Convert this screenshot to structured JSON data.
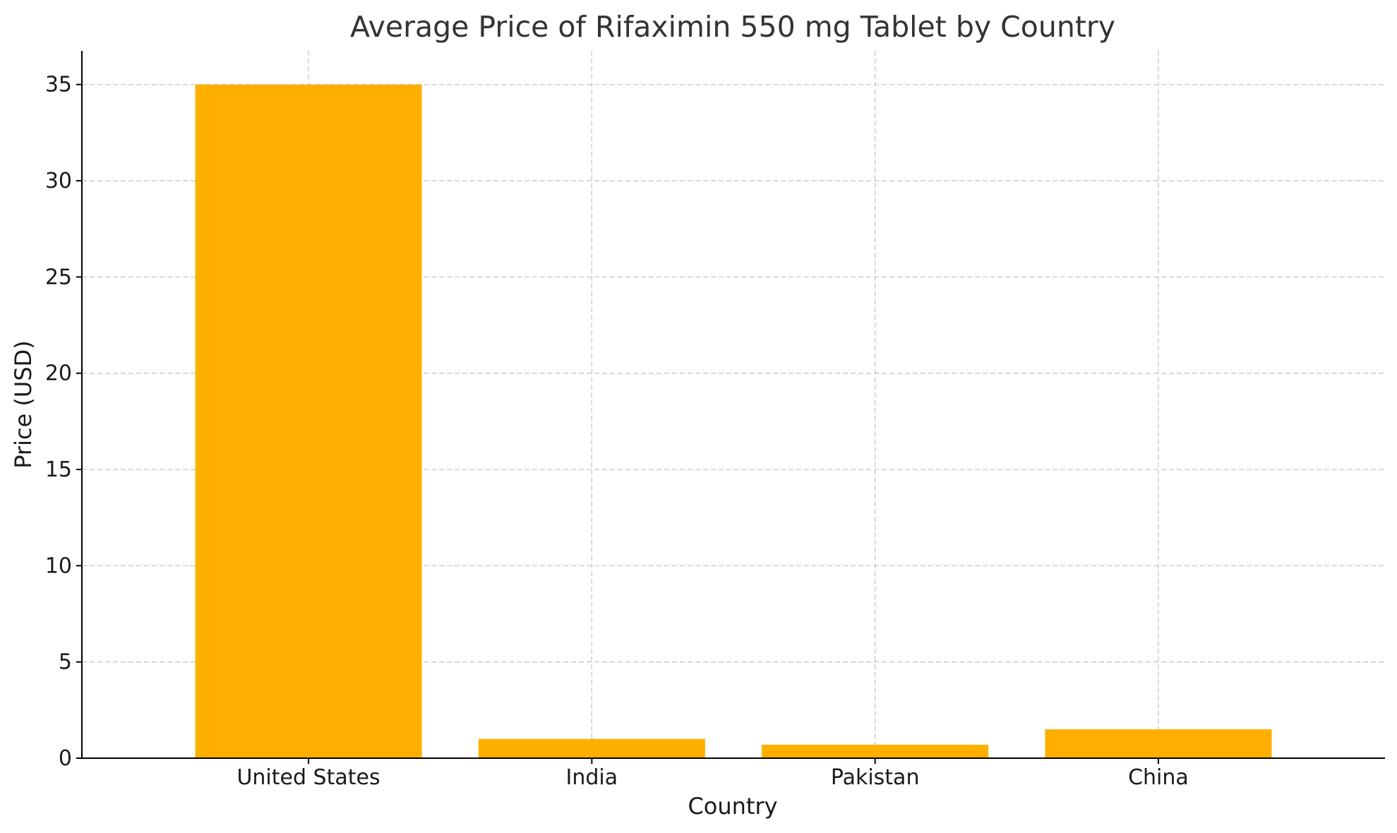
{
  "chart_data": {
    "type": "bar",
    "title": "Average Price of Rifaximin 550 mg Tablet by Country",
    "xlabel": "Country",
    "ylabel": "Price (USD)",
    "categories": [
      "United States",
      "India",
      "Pakistan",
      "China"
    ],
    "values": [
      35,
      1,
      0.7,
      1.5
    ],
    "ylim": [
      0,
      36.75
    ],
    "yticks": [
      0,
      5,
      10,
      15,
      20,
      25,
      30,
      35
    ],
    "grid": true,
    "bar_color": "#FFAF00"
  }
}
